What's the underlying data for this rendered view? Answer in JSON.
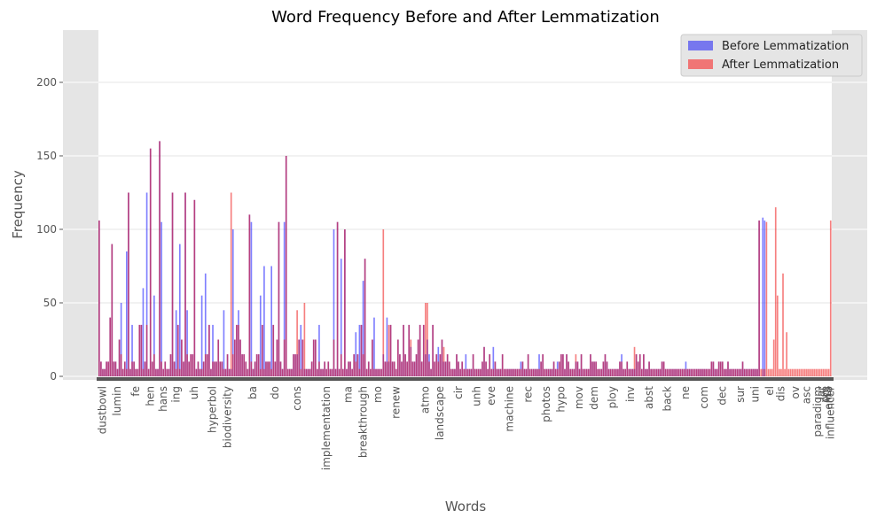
{
  "chart_data": {
    "type": "bar",
    "title": "Word Frequency Before and After Lemmatization",
    "xlabel": "Words",
    "ylabel": "Frequency",
    "ylim": [
      0,
      235
    ],
    "yticks": [
      0,
      50,
      100,
      150,
      200
    ],
    "grid": true,
    "legend_position": "top-right",
    "series": [
      {
        "name": "Before Lemmatization",
        "color": "#0000ff"
      },
      {
        "name": "After Lemmatization",
        "color": "#ee0000"
      }
    ],
    "category_count": 400,
    "visible_tick_labels": [
      {
        "index": 2,
        "label": "dustbowl"
      },
      {
        "index": 10,
        "label": "lumin"
      },
      {
        "index": 20,
        "label": "fe"
      },
      {
        "index": 28,
        "label": "hen"
      },
      {
        "index": 35,
        "label": "hans"
      },
      {
        "index": 42,
        "label": "ing"
      },
      {
        "index": 52,
        "label": "uh"
      },
      {
        "index": 62,
        "label": "hyperbol"
      },
      {
        "index": 70,
        "label": "biodiversity"
      },
      {
        "index": 84,
        "label": "ba"
      },
      {
        "index": 96,
        "label": "do"
      },
      {
        "index": 108,
        "label": "cons"
      },
      {
        "index": 124,
        "label": "implementation"
      },
      {
        "index": 136,
        "label": "ma"
      },
      {
        "index": 144,
        "label": "breakthrough"
      },
      {
        "index": 152,
        "label": "mo"
      },
      {
        "index": 162,
        "label": "renew"
      },
      {
        "index": 178,
        "label": "atmo"
      },
      {
        "index": 186,
        "label": "landscape"
      },
      {
        "index": 196,
        "label": "cir"
      },
      {
        "index": 206,
        "label": "unh"
      },
      {
        "index": 214,
        "label": "eve"
      },
      {
        "index": 224,
        "label": "machine"
      },
      {
        "index": 234,
        "label": "rec"
      },
      {
        "index": 244,
        "label": "photos"
      },
      {
        "index": 252,
        "label": "hypo"
      },
      {
        "index": 262,
        "label": "mov"
      },
      {
        "index": 270,
        "label": "dem"
      },
      {
        "index": 280,
        "label": "ploy"
      },
      {
        "index": 290,
        "label": "inv"
      },
      {
        "index": 300,
        "label": "abst"
      },
      {
        "index": 310,
        "label": "back"
      },
      {
        "index": 320,
        "label": "ne"
      },
      {
        "index": 330,
        "label": "com"
      },
      {
        "index": 340,
        "label": "dec"
      },
      {
        "index": 350,
        "label": "sur"
      },
      {
        "index": 358,
        "label": "uni"
      },
      {
        "index": 366,
        "label": "el"
      },
      {
        "index": 372,
        "label": "dis"
      },
      {
        "index": 380,
        "label": "ov"
      },
      {
        "index": 386,
        "label": "asc"
      },
      {
        "index": 392,
        "label": "paradigm"
      },
      {
        "index": 394,
        "label": "lar"
      },
      {
        "index": 396,
        "label": "cre"
      },
      {
        "index": 397,
        "label": "wa"
      },
      {
        "index": 398,
        "label": "emb"
      },
      {
        "index": 399,
        "label": "influencer"
      }
    ],
    "before_peaks": [
      {
        "index": 0,
        "value": 106
      },
      {
        "index": 6,
        "value": 40
      },
      {
        "index": 7,
        "value": 90
      },
      {
        "index": 12,
        "value": 50
      },
      {
        "index": 15,
        "value": 85
      },
      {
        "index": 16,
        "value": 125
      },
      {
        "index": 18,
        "value": 35
      },
      {
        "index": 24,
        "value": 60
      },
      {
        "index": 26,
        "value": 125
      },
      {
        "index": 28,
        "value": 155
      },
      {
        "index": 30,
        "value": 55
      },
      {
        "index": 33,
        "value": 160
      },
      {
        "index": 34,
        "value": 105
      },
      {
        "index": 40,
        "value": 125
      },
      {
        "index": 42,
        "value": 45
      },
      {
        "index": 44,
        "value": 90
      },
      {
        "index": 47,
        "value": 125
      },
      {
        "index": 48,
        "value": 45
      },
      {
        "index": 52,
        "value": 120
      },
      {
        "index": 56,
        "value": 55
      },
      {
        "index": 58,
        "value": 70
      },
      {
        "index": 62,
        "value": 35
      },
      {
        "index": 68,
        "value": 45
      },
      {
        "index": 73,
        "value": 100
      },
      {
        "index": 76,
        "value": 45
      },
      {
        "index": 82,
        "value": 110
      },
      {
        "index": 83,
        "value": 105
      },
      {
        "index": 88,
        "value": 55
      },
      {
        "index": 90,
        "value": 75
      },
      {
        "index": 94,
        "value": 75
      },
      {
        "index": 98,
        "value": 105
      },
      {
        "index": 101,
        "value": 105
      },
      {
        "index": 102,
        "value": 150
      },
      {
        "index": 110,
        "value": 35
      },
      {
        "index": 120,
        "value": 35
      },
      {
        "index": 128,
        "value": 100
      },
      {
        "index": 130,
        "value": 105
      },
      {
        "index": 132,
        "value": 80
      },
      {
        "index": 134,
        "value": 100
      },
      {
        "index": 140,
        "value": 30
      },
      {
        "index": 142,
        "value": 35
      },
      {
        "index": 144,
        "value": 65
      },
      {
        "index": 145,
        "value": 80
      },
      {
        "index": 150,
        "value": 40
      },
      {
        "index": 157,
        "value": 40
      },
      {
        "index": 170,
        "value": 20
      },
      {
        "index": 180,
        "value": 15
      },
      {
        "index": 185,
        "value": 20
      },
      {
        "index": 200,
        "value": 15
      },
      {
        "index": 210,
        "value": 20
      },
      {
        "index": 215,
        "value": 20
      },
      {
        "index": 230,
        "value": 10
      },
      {
        "index": 240,
        "value": 15
      },
      {
        "index": 250,
        "value": 10
      },
      {
        "index": 260,
        "value": 10
      },
      {
        "index": 270,
        "value": 10
      },
      {
        "index": 285,
        "value": 15
      },
      {
        "index": 300,
        "value": 10
      },
      {
        "index": 320,
        "value": 10
      },
      {
        "index": 340,
        "value": 10
      },
      {
        "index": 360,
        "value": 106
      },
      {
        "index": 362,
        "value": 108
      },
      {
        "index": 363,
        "value": 106
      }
    ],
    "after_peaks": [
      {
        "index": 0,
        "value": 106
      },
      {
        "index": 6,
        "value": 40
      },
      {
        "index": 7,
        "value": 90
      },
      {
        "index": 16,
        "value": 125
      },
      {
        "index": 28,
        "value": 155
      },
      {
        "index": 33,
        "value": 160
      },
      {
        "index": 40,
        "value": 125
      },
      {
        "index": 47,
        "value": 125
      },
      {
        "index": 52,
        "value": 120
      },
      {
        "index": 72,
        "value": 125
      },
      {
        "index": 82,
        "value": 110
      },
      {
        "index": 98,
        "value": 105
      },
      {
        "index": 102,
        "value": 150
      },
      {
        "index": 108,
        "value": 45
      },
      {
        "index": 112,
        "value": 50
      },
      {
        "index": 130,
        "value": 105
      },
      {
        "index": 134,
        "value": 100
      },
      {
        "index": 145,
        "value": 80
      },
      {
        "index": 155,
        "value": 100
      },
      {
        "index": 158,
        "value": 35
      },
      {
        "index": 178,
        "value": 50
      },
      {
        "index": 179,
        "value": 50
      },
      {
        "index": 188,
        "value": 20
      },
      {
        "index": 210,
        "value": 20
      },
      {
        "index": 260,
        "value": 15
      },
      {
        "index": 292,
        "value": 20
      },
      {
        "index": 360,
        "value": 106
      },
      {
        "index": 364,
        "value": 105
      },
      {
        "index": 369,
        "value": 115
      },
      {
        "index": 370,
        "value": 55
      },
      {
        "index": 373,
        "value": 70
      },
      {
        "index": 375,
        "value": 30
      },
      {
        "index": 368,
        "value": 25
      },
      {
        "index": 399,
        "value": 106
      }
    ]
  }
}
